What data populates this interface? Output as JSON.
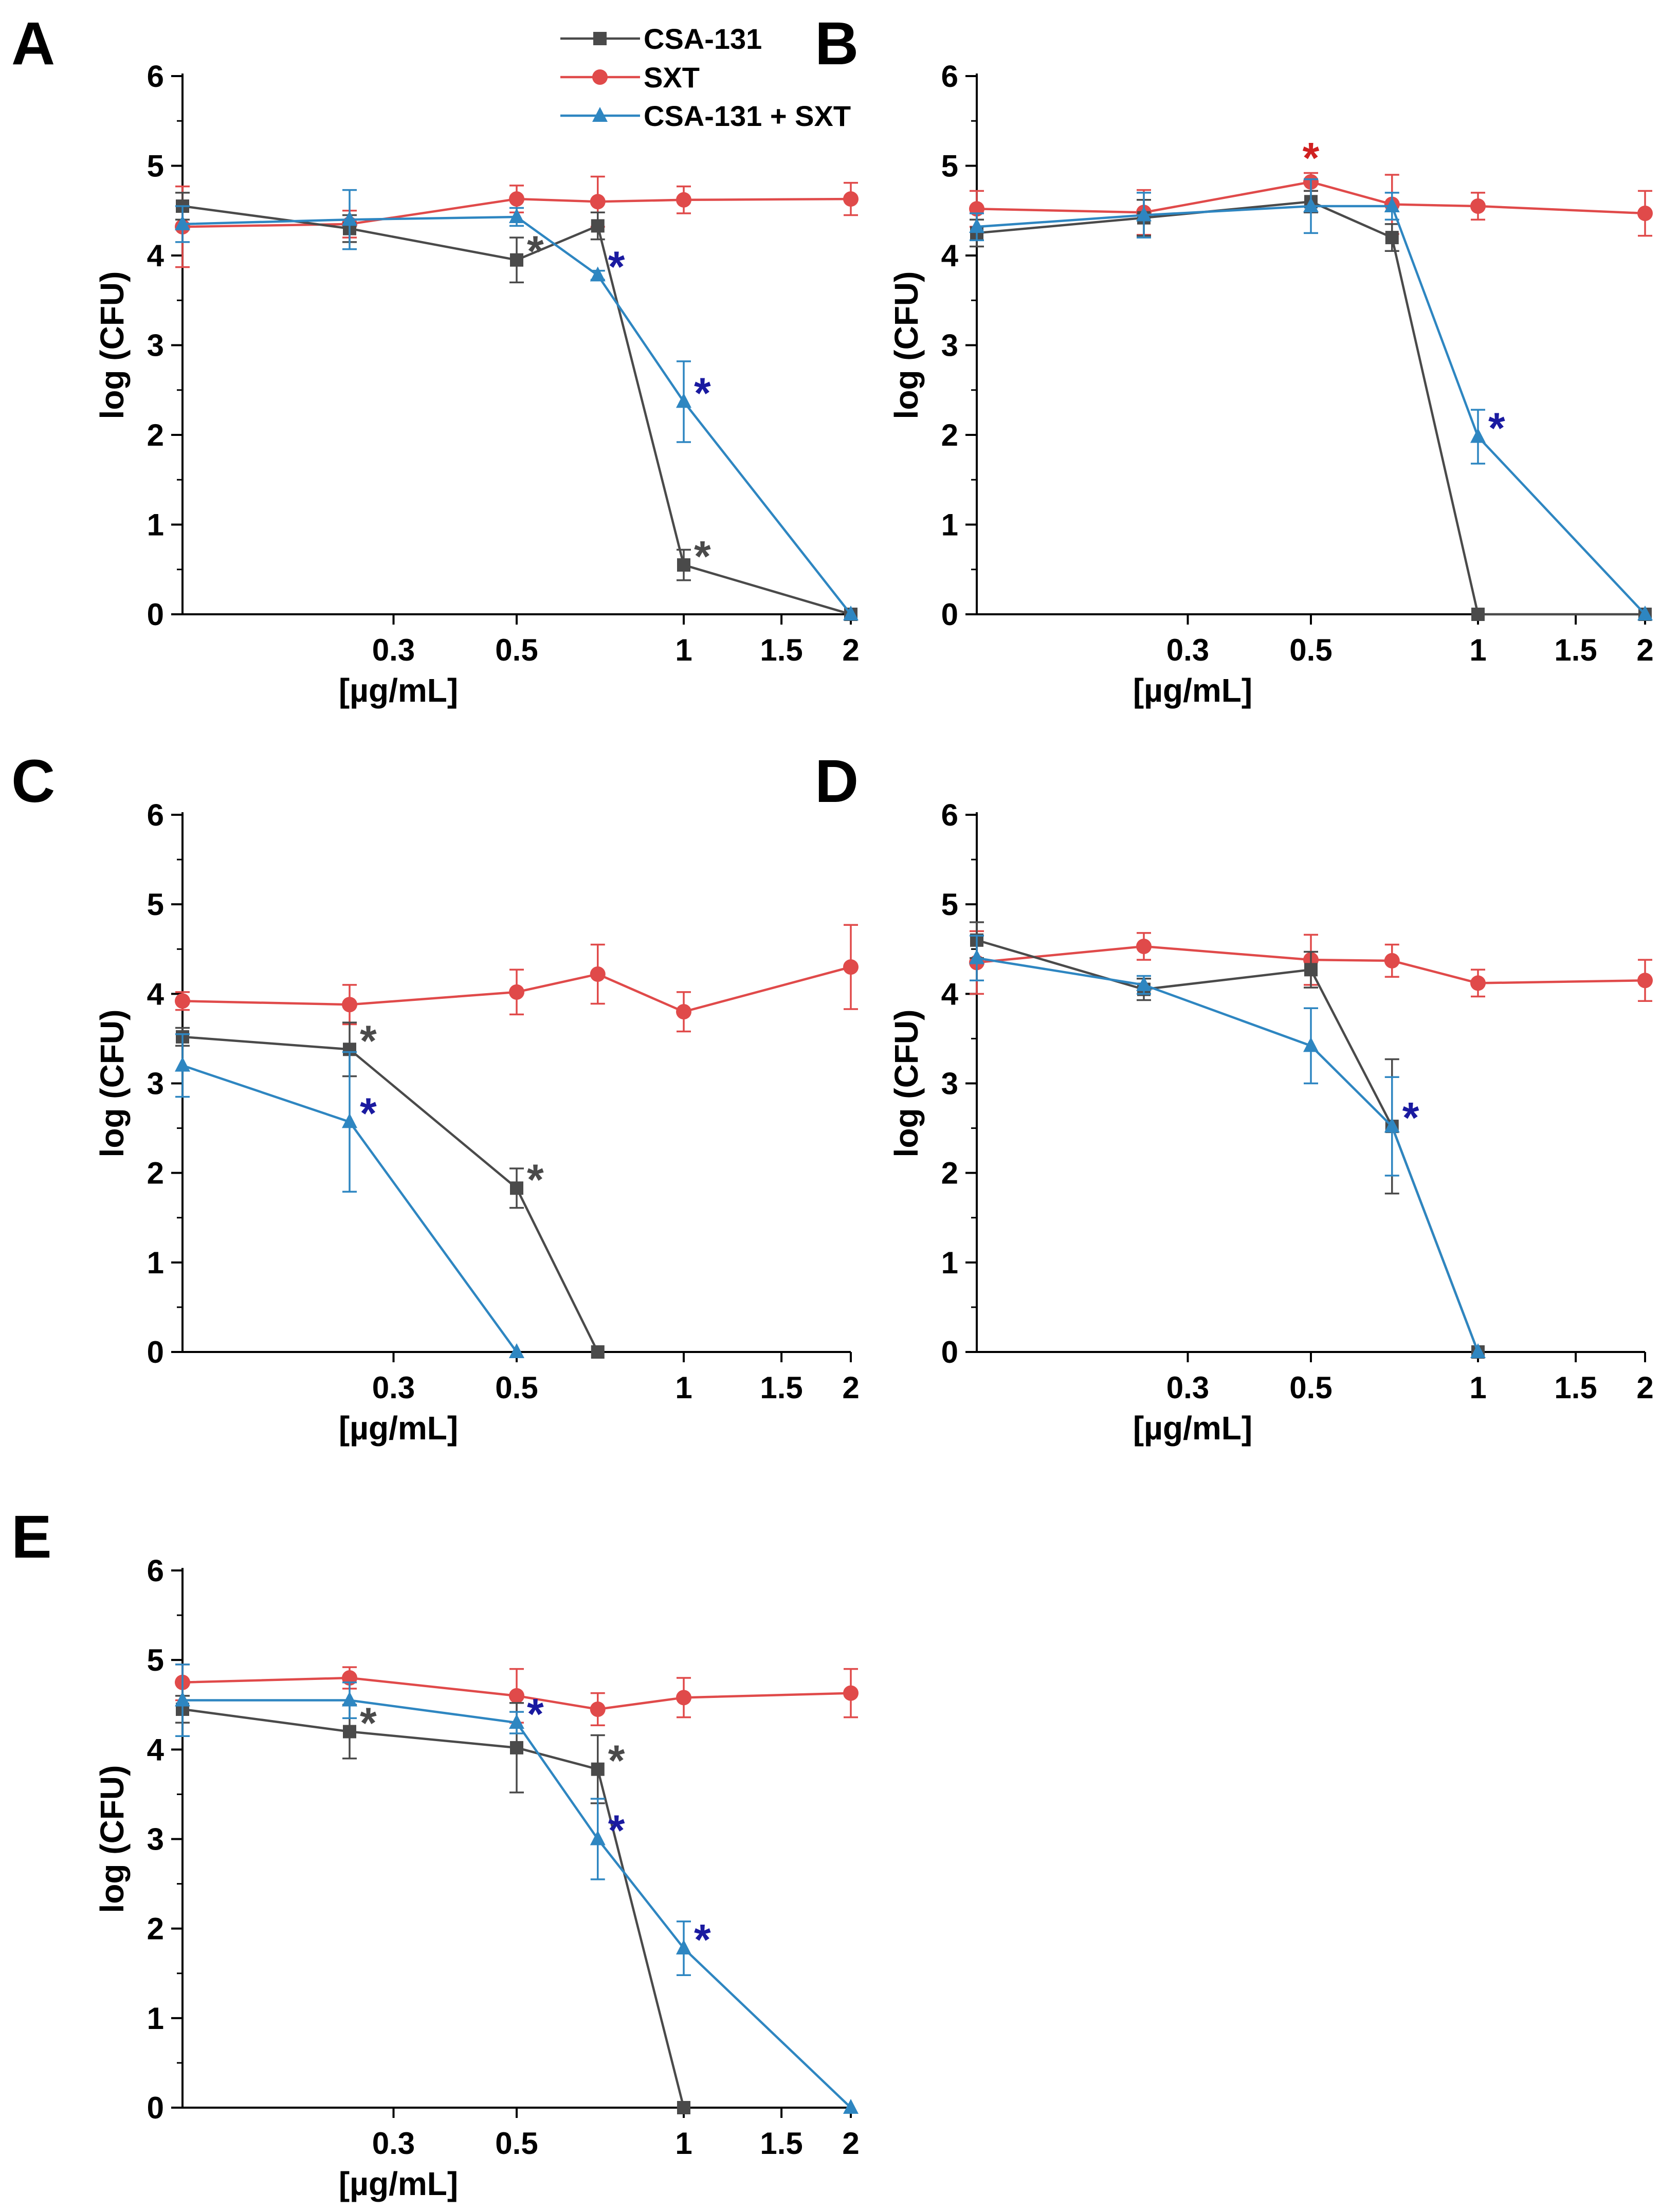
{
  "legend": [
    {
      "name": "CSA-131",
      "color": "#4a4a4a",
      "marker": "square"
    },
    {
      "name": "SXT",
      "color": "#e04a4a",
      "marker": "circle"
    },
    {
      "name": "CSA-131 + SXT",
      "color": "#2e86c1",
      "marker": "triangle"
    }
  ],
  "colors": {
    "csa": "#4a4a4a",
    "sxt": "#e04a4a",
    "combo": "#2e86c1",
    "star_blue": "#1a1aa0",
    "star_red": "#d02020"
  },
  "chart_data": [
    {
      "panel": "A",
      "type": "line",
      "xlabel": "[µg/mL]",
      "ylabel": "log (CFU)",
      "x_scale": "log",
      "xlim": [
        0.125,
        2
      ],
      "ylim": [
        0,
        6
      ],
      "x_ticks": [
        0.3,
        0.5,
        1,
        1.5,
        2
      ],
      "x_tick_labels": [
        "0.3",
        "0.5",
        "1",
        "1.5",
        "2"
      ],
      "y_ticks": [
        0,
        1,
        2,
        3,
        4,
        5,
        6
      ],
      "y_tick_labels": [
        "0",
        "1",
        "2",
        "3",
        "4",
        "5",
        "6"
      ],
      "x": [
        0.125,
        0.25,
        0.5,
        0.7,
        1,
        2
      ],
      "series": [
        {
          "name": "CSA-131",
          "values": [
            4.55,
            4.3,
            3.95,
            4.33,
            0.55,
            0
          ],
          "errors": [
            0.15,
            0.15,
            0.25,
            0.15,
            0.17,
            0
          ],
          "significant": [
            false,
            false,
            true,
            false,
            true,
            false
          ]
        },
        {
          "name": "SXT",
          "values": [
            4.32,
            4.35,
            4.63,
            4.6,
            4.62,
            4.63
          ],
          "errors": [
            0.45,
            0.15,
            0.15,
            0.28,
            0.15,
            0.18
          ],
          "significant": [
            false,
            false,
            false,
            false,
            false,
            false
          ]
        },
        {
          "name": "CSA-131 + SXT",
          "values": [
            4.35,
            4.4,
            4.43,
            3.78,
            2.37,
            0
          ],
          "errors": [
            0.2,
            0.33,
            0.1,
            0.05,
            0.45,
            0
          ],
          "significant": [
            false,
            false,
            false,
            true,
            true,
            false
          ]
        }
      ]
    },
    {
      "panel": "B",
      "type": "line",
      "xlabel": "[µg/mL]",
      "ylabel": "log (CFU)",
      "x_scale": "log",
      "xlim": [
        0.125,
        2
      ],
      "ylim": [
        0,
        6
      ],
      "x_ticks": [
        0.3,
        0.5,
        1,
        1.5,
        2
      ],
      "x_tick_labels": [
        "0.3",
        "0.5",
        "1",
        "1.5",
        "2"
      ],
      "y_ticks": [
        0,
        1,
        2,
        3,
        4,
        5,
        6
      ],
      "y_tick_labels": [
        "0",
        "1",
        "2",
        "3",
        "4",
        "5",
        "6"
      ],
      "x": [
        0.125,
        0.25,
        0.5,
        0.7,
        1,
        2
      ],
      "series": [
        {
          "name": "CSA-131",
          "values": [
            4.25,
            4.42,
            4.6,
            4.2,
            0,
            0
          ],
          "errors": [
            0.15,
            0.2,
            0.12,
            0.15,
            0,
            0
          ],
          "significant": [
            false,
            false,
            false,
            false,
            false,
            false
          ]
        },
        {
          "name": "SXT",
          "values": [
            4.52,
            4.48,
            4.82,
            4.57,
            4.55,
            4.47
          ],
          "errors": [
            0.2,
            0.25,
            0.1,
            0.33,
            0.15,
            0.25
          ],
          "significant": [
            false,
            false,
            true,
            false,
            false,
            false
          ]
        },
        {
          "name": "CSA-131 + SXT",
          "values": [
            4.32,
            4.45,
            4.55,
            4.55,
            1.98,
            0
          ],
          "errors": [
            0.15,
            0.25,
            0.3,
            0.15,
            0.3,
            0
          ],
          "significant": [
            false,
            false,
            false,
            false,
            true,
            false
          ]
        }
      ]
    },
    {
      "panel": "C",
      "type": "line",
      "xlabel": "[µg/mL]",
      "ylabel": "log (CFU)",
      "x_scale": "log",
      "xlim": [
        0.125,
        2
      ],
      "ylim": [
        0,
        6
      ],
      "x_ticks": [
        0.3,
        0.5,
        1,
        1.5,
        2
      ],
      "x_tick_labels": [
        "0.3",
        "0.5",
        "1",
        "1.5",
        "2"
      ],
      "y_ticks": [
        0,
        1,
        2,
        3,
        4,
        5,
        6
      ],
      "y_tick_labels": [
        "0",
        "1",
        "2",
        "3",
        "4",
        "5",
        "6"
      ],
      "x": [
        0.125,
        0.25,
        0.5,
        0.7,
        1,
        2
      ],
      "series": [
        {
          "name": "CSA-131",
          "values": [
            3.52,
            3.38,
            1.83,
            0,
            null,
            null
          ],
          "errors": [
            0.1,
            0.3,
            0.22,
            0,
            0,
            0
          ],
          "significant": [
            false,
            true,
            true,
            false,
            false,
            false
          ]
        },
        {
          "name": "SXT",
          "values": [
            3.92,
            3.88,
            4.02,
            4.22,
            3.8,
            4.3
          ],
          "errors": [
            0.1,
            0.22,
            0.25,
            0.33,
            0.22,
            0.47
          ],
          "significant": [
            false,
            false,
            false,
            false,
            false,
            false
          ]
        },
        {
          "name": "CSA-131 + SXT",
          "values": [
            3.2,
            2.57,
            0,
            null,
            null,
            null
          ],
          "errors": [
            0.35,
            0.78,
            0,
            0,
            0,
            0
          ],
          "significant": [
            false,
            true,
            false,
            false,
            false,
            false
          ]
        }
      ]
    },
    {
      "panel": "D",
      "type": "line",
      "xlabel": "[µg/mL]",
      "ylabel": "log (CFU)",
      "x_scale": "log",
      "xlim": [
        0.125,
        2
      ],
      "ylim": [
        0,
        6
      ],
      "x_ticks": [
        0.3,
        0.5,
        1,
        1.5,
        2
      ],
      "x_tick_labels": [
        "0.3",
        "0.5",
        "1",
        "1.5",
        "2"
      ],
      "y_ticks": [
        0,
        1,
        2,
        3,
        4,
        5,
        6
      ],
      "y_tick_labels": [
        "0",
        "1",
        "2",
        "3",
        "4",
        "5",
        "6"
      ],
      "x": [
        0.125,
        0.25,
        0.5,
        0.7,
        1,
        2
      ],
      "series": [
        {
          "name": "CSA-131",
          "values": [
            4.6,
            4.05,
            4.27,
            2.52,
            0,
            null
          ],
          "errors": [
            0.2,
            0.12,
            0.2,
            0.75,
            0,
            0
          ],
          "significant": [
            false,
            false,
            false,
            false,
            false,
            false
          ]
        },
        {
          "name": "SXT",
          "values": [
            4.35,
            4.53,
            4.38,
            4.37,
            4.12,
            4.15
          ],
          "errors": [
            0.35,
            0.15,
            0.28,
            0.18,
            0.15,
            0.23
          ],
          "significant": [
            false,
            false,
            false,
            false,
            false,
            false
          ]
        },
        {
          "name": "CSA-131 + SXT",
          "values": [
            4.4,
            4.1,
            3.42,
            2.52,
            0,
            null
          ],
          "errors": [
            0.25,
            0.1,
            0.42,
            0.55,
            0,
            0
          ],
          "significant": [
            false,
            false,
            false,
            true,
            false,
            false
          ]
        }
      ]
    },
    {
      "panel": "E",
      "type": "line",
      "xlabel": "[µg/mL]",
      "ylabel": "log (CFU)",
      "x_scale": "log",
      "xlim": [
        0.125,
        2
      ],
      "ylim": [
        0,
        6
      ],
      "x_ticks": [
        0.3,
        0.5,
        1,
        1.5,
        2
      ],
      "x_tick_labels": [
        "0.3",
        "0.5",
        "1",
        "1.5",
        "2"
      ],
      "y_ticks": [
        0,
        1,
        2,
        3,
        4,
        5,
        6
      ],
      "y_tick_labels": [
        "0",
        "1",
        "2",
        "3",
        "4",
        "5",
        "6"
      ],
      "x": [
        0.125,
        0.25,
        0.5,
        0.7,
        1,
        2
      ],
      "series": [
        {
          "name": "CSA-131",
          "values": [
            4.45,
            4.2,
            4.02,
            3.78,
            0,
            null
          ],
          "errors": [
            0.15,
            0.3,
            0.5,
            0.38,
            0,
            0
          ],
          "significant": [
            false,
            true,
            false,
            true,
            false,
            false
          ]
        },
        {
          "name": "SXT",
          "values": [
            4.75,
            4.8,
            4.6,
            4.45,
            4.58,
            4.63
          ],
          "errors": [
            0.2,
            0.12,
            0.3,
            0.18,
            0.22,
            0.27
          ],
          "significant": [
            false,
            false,
            false,
            false,
            false,
            false
          ]
        },
        {
          "name": "CSA-131 + SXT",
          "values": [
            4.55,
            4.55,
            4.3,
            3.0,
            1.78,
            0
          ],
          "errors": [
            0.4,
            0.2,
            0.12,
            0.45,
            0.3,
            0
          ],
          "significant": [
            false,
            false,
            true,
            true,
            true,
            false
          ]
        }
      ]
    }
  ]
}
